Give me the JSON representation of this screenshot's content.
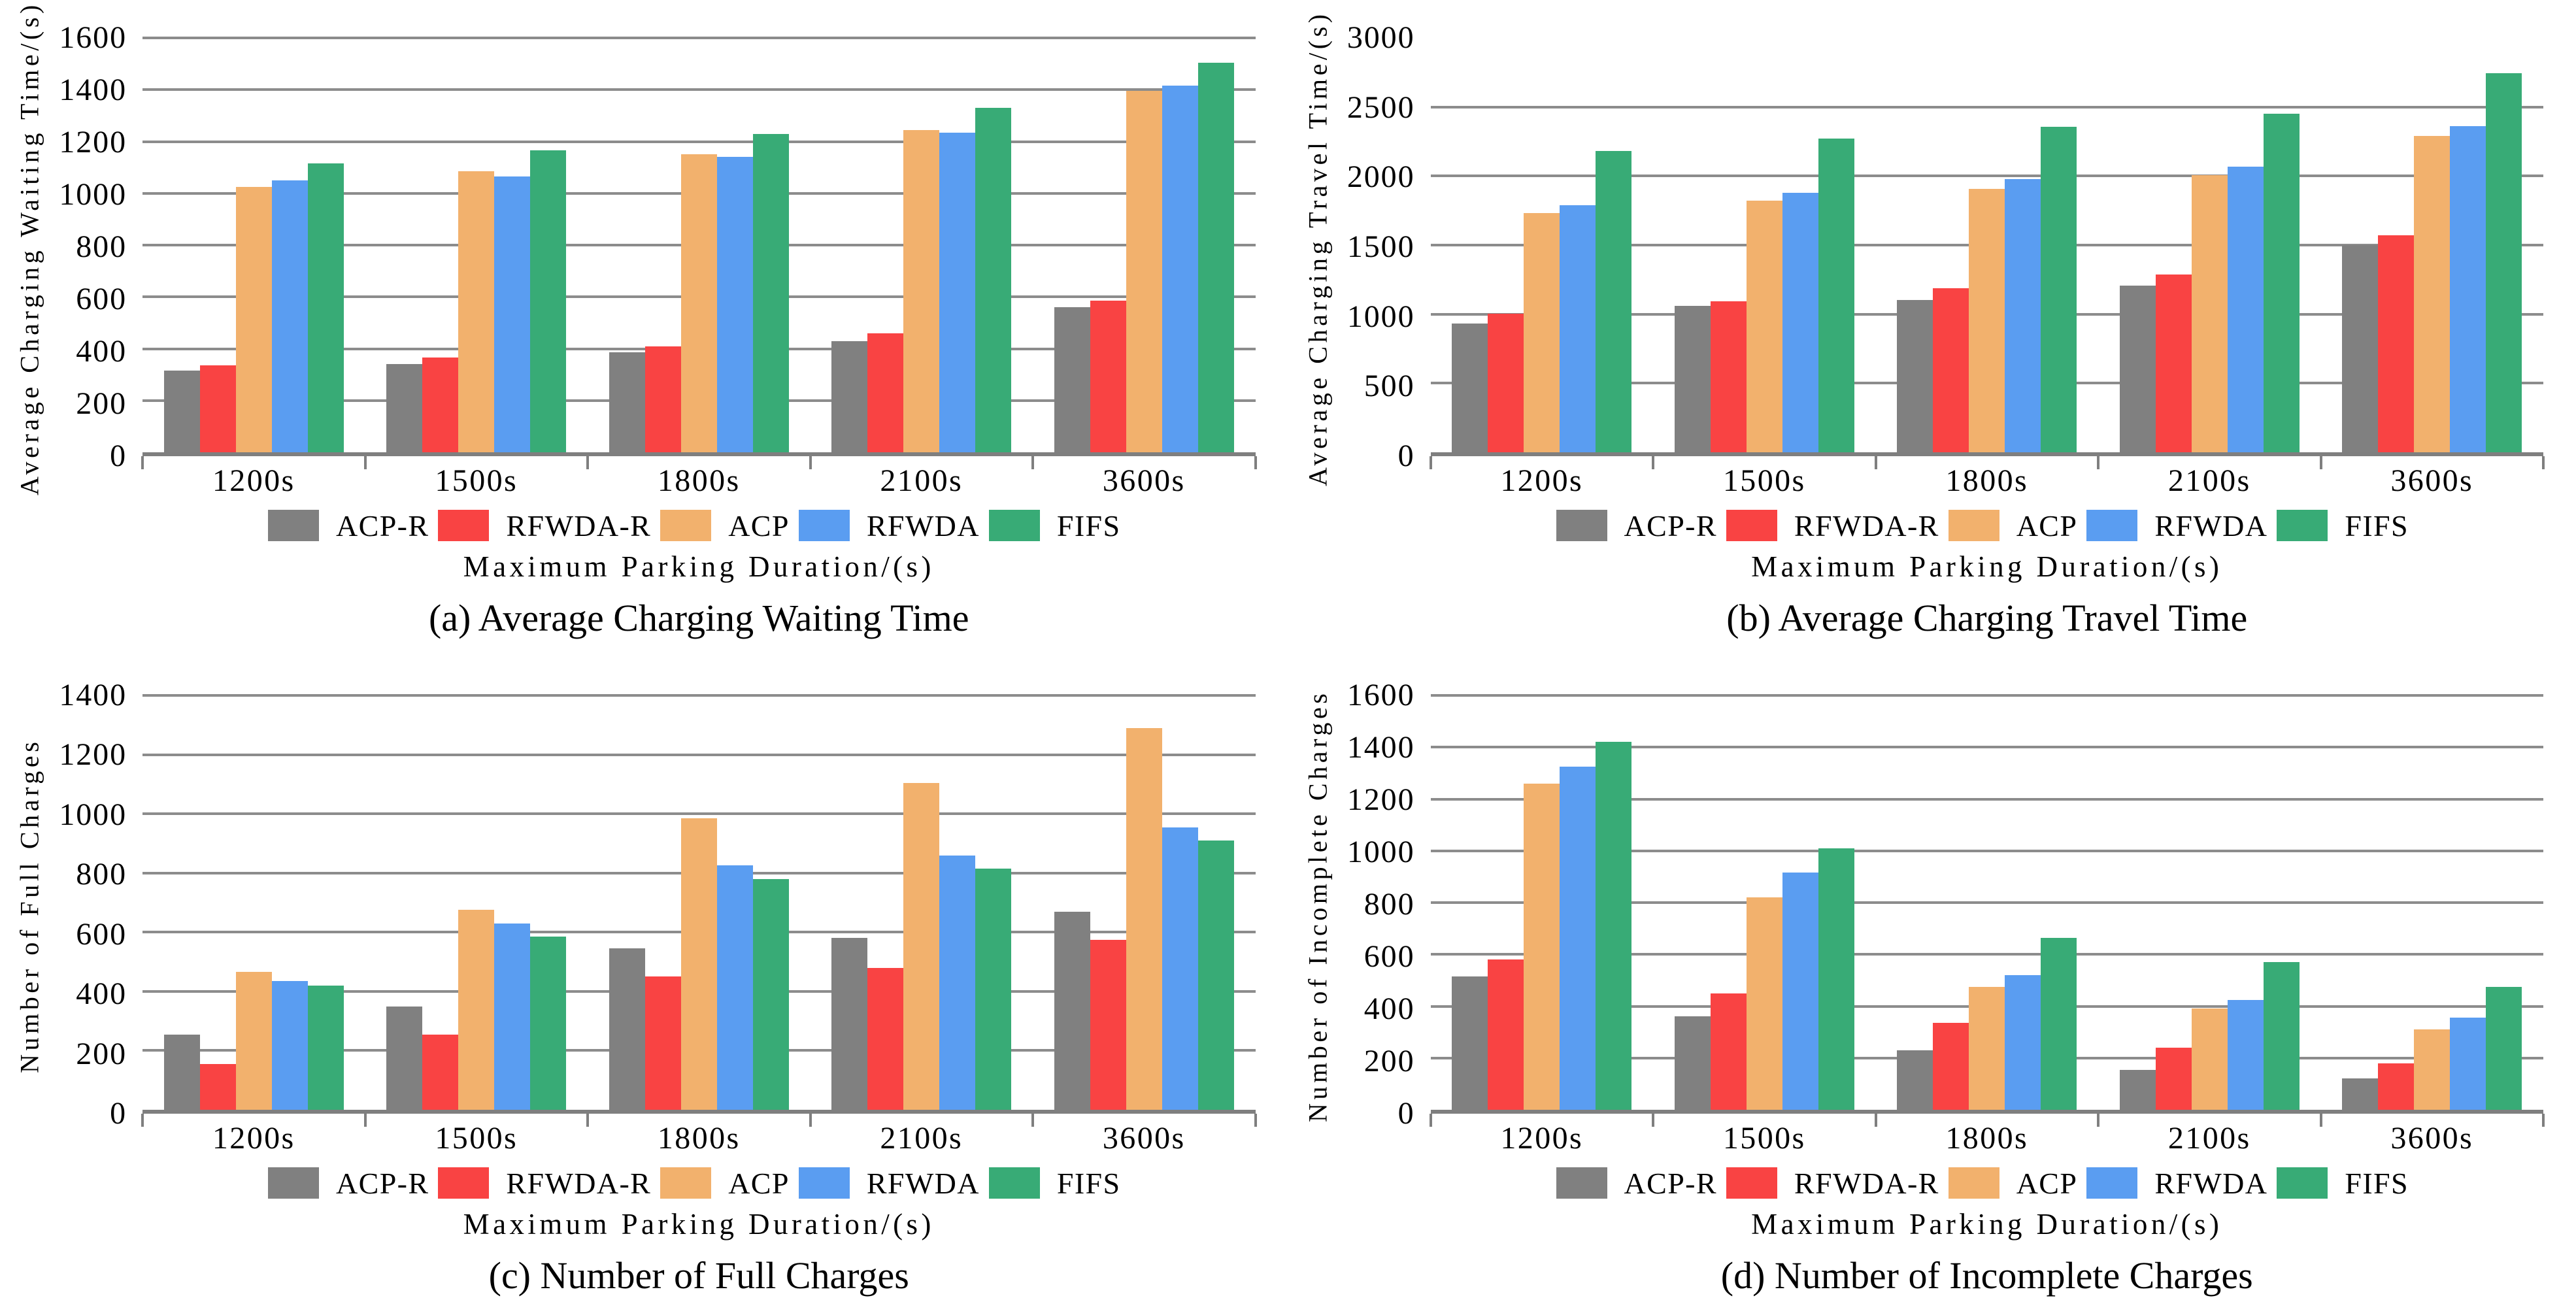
{
  "figure": {
    "grid_color": "#8c8c8c",
    "axis_color": "#7f7f7f",
    "background": "#ffffff",
    "legend_entries": [
      "ACP-R",
      "RFWDA-R",
      "ACP",
      "RFWDA",
      "FIFS"
    ],
    "series_colors": {
      "ACP-R": "#808080",
      "RFWDA-R": "#F94343",
      "ACP": "#F2B16D",
      "RFWDA": "#5A9DF1",
      "FIFS": "#38AB76"
    }
  },
  "chart_data": [
    {
      "id": "a",
      "type": "bar",
      "caption": "(a) Average Charging Waiting Time",
      "ylabel": "Average Charging Waiting Time/(s)",
      "xlabel": "Maximum Parking Duration/(s)",
      "ylim": [
        0,
        1600
      ],
      "yticks": [
        "0",
        "200",
        "400",
        "600",
        "800",
        "1000",
        "1200",
        "1400",
        "1600"
      ],
      "gridline_max": 1600,
      "grid": true,
      "legend_position": "below",
      "categories": [
        "1200s",
        "1500s",
        "1800s",
        "2100s",
        "3600s"
      ],
      "series": [
        {
          "name": "ACP-R",
          "color": "#808080",
          "values": [
            315,
            340,
            385,
            430,
            560
          ]
        },
        {
          "name": "RFWDA-R",
          "color": "#F94343",
          "values": [
            335,
            365,
            410,
            460,
            585
          ]
        },
        {
          "name": "ACP",
          "color": "#F2B16D",
          "values": [
            1025,
            1085,
            1150,
            1245,
            1395
          ]
        },
        {
          "name": "RFWDA",
          "color": "#5A9DF1",
          "values": [
            1050,
            1065,
            1140,
            1235,
            1415
          ]
        },
        {
          "name": "FIFS",
          "color": "#38AB76",
          "values": [
            1115,
            1165,
            1230,
            1330,
            1505
          ]
        }
      ]
    },
    {
      "id": "b",
      "type": "bar",
      "caption": "(b) Average Charging Travel Time",
      "ylabel": "Average Charging Travel Time/(s)",
      "xlabel": "Maximum Parking Duration/(s)",
      "ylim": [
        0,
        3000
      ],
      "yticks": [
        "0",
        "500",
        "1000",
        "1500",
        "2000",
        "2500",
        "3000"
      ],
      "gridline_max": 2500,
      "grid": true,
      "legend_position": "below",
      "categories": [
        "1200s",
        "1500s",
        "1800s",
        "2100s",
        "3600s"
      ],
      "series": [
        {
          "name": "ACP-R",
          "color": "#808080",
          "values": [
            930,
            1060,
            1105,
            1205,
            1500
          ]
        },
        {
          "name": "RFWDA-R",
          "color": "#F94343",
          "values": [
            1005,
            1095,
            1190,
            1285,
            1570
          ]
        },
        {
          "name": "ACP",
          "color": "#F2B16D",
          "values": [
            1730,
            1820,
            1905,
            2005,
            2290
          ]
        },
        {
          "name": "RFWDA",
          "color": "#5A9DF1",
          "values": [
            1790,
            1880,
            1980,
            2070,
            2360
          ]
        },
        {
          "name": "FIFS",
          "color": "#38AB76",
          "values": [
            2180,
            2270,
            2355,
            2450,
            2745
          ]
        }
      ]
    },
    {
      "id": "c",
      "type": "bar",
      "caption": "(c) Number of Full Charges",
      "ylabel": "Number of Full Charges",
      "xlabel": "Maximum Parking Duration/(s)",
      "ylim": [
        0,
        1400
      ],
      "yticks": [
        "0",
        "200",
        "400",
        "600",
        "800",
        "1000",
        "1200",
        "1400"
      ],
      "gridline_max": 1400,
      "grid": true,
      "legend_position": "below",
      "categories": [
        "1200s",
        "1500s",
        "1800s",
        "2100s",
        "3600s"
      ],
      "series": [
        {
          "name": "ACP-R",
          "color": "#808080",
          "values": [
            255,
            350,
            545,
            580,
            670
          ]
        },
        {
          "name": "RFWDA-R",
          "color": "#F94343",
          "values": [
            155,
            255,
            450,
            480,
            575
          ]
        },
        {
          "name": "ACP",
          "color": "#F2B16D",
          "values": [
            465,
            675,
            985,
            1105,
            1290
          ]
        },
        {
          "name": "RFWDA",
          "color": "#5A9DF1",
          "values": [
            435,
            630,
            825,
            860,
            955
          ]
        },
        {
          "name": "FIFS",
          "color": "#38AB76",
          "values": [
            420,
            585,
            780,
            815,
            910
          ]
        }
      ]
    },
    {
      "id": "d",
      "type": "bar",
      "caption": "(d) Number of Incomplete Charges",
      "ylabel": "Number of Incomplete Charges",
      "xlabel": "Maximum Parking Duration/(s)",
      "ylim": [
        0,
        1600
      ],
      "yticks": [
        "0",
        "200",
        "400",
        "600",
        "800",
        "1000",
        "1200",
        "1400",
        "1600"
      ],
      "gridline_max": 1600,
      "grid": true,
      "legend_position": "below",
      "categories": [
        "1200s",
        "1500s",
        "1800s",
        "2100s",
        "3600s"
      ],
      "series": [
        {
          "name": "ACP-R",
          "color": "#808080",
          "values": [
            515,
            360,
            230,
            155,
            120
          ]
        },
        {
          "name": "RFWDA-R",
          "color": "#F94343",
          "values": [
            580,
            450,
            335,
            240,
            180
          ]
        },
        {
          "name": "ACP",
          "color": "#F2B16D",
          "values": [
            1260,
            820,
            475,
            390,
            310
          ]
        },
        {
          "name": "RFWDA",
          "color": "#5A9DF1",
          "values": [
            1325,
            915,
            520,
            425,
            355
          ]
        },
        {
          "name": "FIFS",
          "color": "#38AB76",
          "values": [
            1420,
            1010,
            665,
            570,
            475
          ]
        }
      ]
    }
  ]
}
